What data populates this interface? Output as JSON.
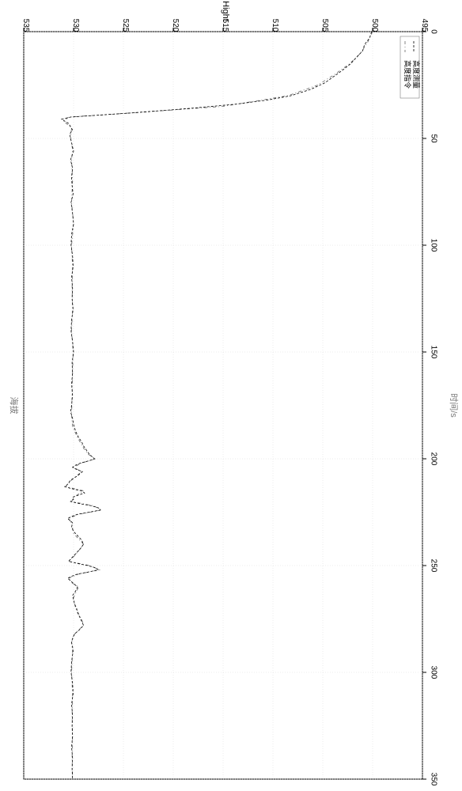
{
  "chart": {
    "type": "line",
    "title": "海拔",
    "xlabel": "时间/s",
    "ylabel": "Hight",
    "xlim": [
      0,
      350
    ],
    "ylim": [
      495,
      535
    ],
    "xtick_step": 50,
    "ytick_step": 5,
    "xticks": [
      0,
      50,
      100,
      150,
      200,
      250,
      300,
      350
    ],
    "yticks": [
      495,
      500,
      505,
      510,
      515,
      520,
      525,
      530,
      535
    ],
    "background_color": "#ffffff",
    "grid_color": "#d8d8d8",
    "axis_color": "#000000",
    "label_fontsize": 10,
    "series": [
      {
        "name": "高度指令",
        "color": "#666666",
        "style": "dashdot",
        "data": [
          [
            0,
            500
          ],
          [
            5,
            500.5
          ],
          [
            10,
            501.2
          ],
          [
            15,
            502.3
          ],
          [
            20,
            503.8
          ],
          [
            25,
            505.5
          ],
          [
            30,
            508.5
          ],
          [
            35,
            515
          ],
          [
            38,
            524
          ],
          [
            40,
            530.5
          ],
          [
            42,
            531
          ],
          [
            45,
            530.2
          ],
          [
            50,
            530.3
          ],
          [
            55,
            530.1
          ],
          [
            60,
            530.2
          ],
          [
            70,
            530.1
          ],
          [
            80,
            530.2
          ],
          [
            90,
            530.0
          ],
          [
            100,
            530.2
          ],
          [
            110,
            530.1
          ],
          [
            120,
            530.15
          ],
          [
            130,
            530.1
          ],
          [
            140,
            530.2
          ],
          [
            150,
            530.05
          ],
          [
            160,
            530.1
          ],
          [
            170,
            530.15
          ],
          [
            180,
            530.2
          ],
          [
            185,
            530.1
          ],
          [
            190,
            529.6
          ],
          [
            195,
            529.0
          ],
          [
            198,
            528.5
          ],
          [
            200,
            527.8
          ],
          [
            202,
            529.2
          ],
          [
            204,
            530.0
          ],
          [
            206,
            529.2
          ],
          [
            210,
            530.2
          ],
          [
            213,
            530.8
          ],
          [
            215,
            529.0
          ],
          [
            218,
            530.0
          ],
          [
            220,
            530.2
          ],
          [
            222,
            528.0
          ],
          [
            224,
            527.2
          ],
          [
            226,
            529.5
          ],
          [
            228,
            530.5
          ],
          [
            230,
            530.2
          ],
          [
            235,
            530.0
          ],
          [
            240,
            529.0
          ],
          [
            245,
            529.8
          ],
          [
            248,
            530.5
          ],
          [
            250,
            528.4
          ],
          [
            252,
            527.4
          ],
          [
            254,
            529.5
          ],
          [
            256,
            530.5
          ],
          [
            258,
            530.2
          ],
          [
            260,
            529.5
          ],
          [
            265,
            530.0
          ],
          [
            270,
            529.8
          ],
          [
            275,
            529.2
          ],
          [
            278,
            529.0
          ],
          [
            282,
            529.9
          ],
          [
            286,
            530.2
          ],
          [
            290,
            530.1
          ],
          [
            300,
            530.2
          ],
          [
            310,
            530.1
          ],
          [
            320,
            530.15
          ],
          [
            330,
            530.1
          ],
          [
            340,
            530.15
          ],
          [
            350,
            530.1
          ]
        ]
      },
      {
        "name": "高度测量",
        "color": "#000000",
        "style": "dashed",
        "data": [
          [
            0,
            500.1
          ],
          [
            3,
            500.3
          ],
          [
            6,
            500.8
          ],
          [
            9,
            501.0
          ],
          [
            12,
            501.6
          ],
          [
            15,
            502.2
          ],
          [
            18,
            503.0
          ],
          [
            21,
            503.9
          ],
          [
            24,
            504.8
          ],
          [
            27,
            506.2
          ],
          [
            30,
            508.2
          ],
          [
            32,
            510.5
          ],
          [
            34,
            513.8
          ],
          [
            36,
            518.5
          ],
          [
            38,
            524.0
          ],
          [
            40,
            530.3
          ],
          [
            41,
            531.2
          ],
          [
            43,
            530.5
          ],
          [
            46,
            530.1
          ],
          [
            48,
            530.4
          ],
          [
            52,
            530.2
          ],
          [
            56,
            530.0
          ],
          [
            60,
            530.3
          ],
          [
            64,
            530.1
          ],
          [
            68,
            530.2
          ],
          [
            72,
            530.15
          ],
          [
            76,
            530.05
          ],
          [
            80,
            530.25
          ],
          [
            85,
            530.1
          ],
          [
            90,
            530.0
          ],
          [
            95,
            530.2
          ],
          [
            100,
            530.25
          ],
          [
            105,
            530.1
          ],
          [
            110,
            530.05
          ],
          [
            115,
            530.2
          ],
          [
            120,
            530.1
          ],
          [
            125,
            530.15
          ],
          [
            130,
            530.05
          ],
          [
            135,
            530.2
          ],
          [
            140,
            530.25
          ],
          [
            145,
            530.1
          ],
          [
            150,
            530.0
          ],
          [
            155,
            530.15
          ],
          [
            160,
            530.1
          ],
          [
            165,
            530.2
          ],
          [
            170,
            530.1
          ],
          [
            175,
            530.2
          ],
          [
            178,
            530.3
          ],
          [
            181,
            530.1
          ],
          [
            184,
            530.0
          ],
          [
            187,
            529.8
          ],
          [
            190,
            529.5
          ],
          [
            192,
            529.2
          ],
          [
            194,
            529.0
          ],
          [
            196,
            528.7
          ],
          [
            198,
            528.4
          ],
          [
            200,
            527.9
          ],
          [
            201,
            528.5
          ],
          [
            202,
            529.3
          ],
          [
            203,
            529.8
          ],
          [
            204,
            530.1
          ],
          [
            205,
            529.7
          ],
          [
            206,
            529.1
          ],
          [
            208,
            529.6
          ],
          [
            210,
            530.3
          ],
          [
            212,
            530.6
          ],
          [
            213,
            530.9
          ],
          [
            214,
            530.2
          ],
          [
            215,
            529.2
          ],
          [
            216,
            528.9
          ],
          [
            217,
            529.5
          ],
          [
            218,
            530.1
          ],
          [
            219,
            530.0
          ],
          [
            220,
            530.3
          ],
          [
            221,
            529.4
          ],
          [
            222,
            528.2
          ],
          [
            223,
            527.5
          ],
          [
            224,
            527.3
          ],
          [
            225,
            528.4
          ],
          [
            226,
            529.6
          ],
          [
            227,
            530.2
          ],
          [
            228,
            530.6
          ],
          [
            229,
            530.3
          ],
          [
            230,
            530.1
          ],
          [
            232,
            530.2
          ],
          [
            234,
            530.0
          ],
          [
            236,
            529.6
          ],
          [
            238,
            529.2
          ],
          [
            240,
            529.0
          ],
          [
            242,
            529.3
          ],
          [
            244,
            529.7
          ],
          [
            246,
            530.1
          ],
          [
            248,
            530.5
          ],
          [
            249,
            529.6
          ],
          [
            250,
            528.6
          ],
          [
            251,
            527.8
          ],
          [
            252,
            527.5
          ],
          [
            253,
            528.5
          ],
          [
            254,
            529.6
          ],
          [
            255,
            530.2
          ],
          [
            256,
            530.6
          ],
          [
            257,
            530.3
          ],
          [
            258,
            530.1
          ],
          [
            260,
            529.6
          ],
          [
            262,
            529.8
          ],
          [
            264,
            530.1
          ],
          [
            266,
            530.0
          ],
          [
            268,
            529.9
          ],
          [
            270,
            529.7
          ],
          [
            272,
            529.6
          ],
          [
            274,
            529.4
          ],
          [
            276,
            529.2
          ],
          [
            278,
            529.0
          ],
          [
            280,
            529.4
          ],
          [
            282,
            529.9
          ],
          [
            284,
            530.1
          ],
          [
            286,
            530.2
          ],
          [
            288,
            530.1
          ],
          [
            290,
            530.05
          ],
          [
            295,
            530.2
          ],
          [
            300,
            530.25
          ],
          [
            305,
            530.1
          ],
          [
            310,
            530.05
          ],
          [
            315,
            530.2
          ],
          [
            320,
            530.1
          ],
          [
            325,
            530.15
          ],
          [
            330,
            530.1
          ],
          [
            335,
            530.2
          ],
          [
            340,
            530.1
          ],
          [
            345,
            530.15
          ],
          [
            350,
            530.1
          ]
        ]
      }
    ],
    "legend": {
      "position": "top-right-outside",
      "items": [
        "高度指令",
        "高度测量"
      ]
    }
  }
}
